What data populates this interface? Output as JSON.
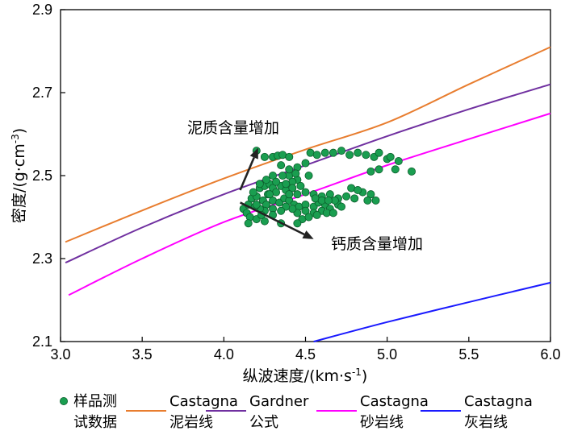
{
  "chart_data": {
    "type": "scatter",
    "xlabel_main": "纵波速度/(km·s",
    "xlabel_sup": "-1",
    "xlabel_end": ")",
    "ylabel_main": "密度/(g·cm",
    "ylabel_sup": "-3",
    "ylabel_end": ")",
    "xlim": [
      3.0,
      6.0
    ],
    "ylim": [
      2.1,
      2.9
    ],
    "xticks": [
      3.0,
      3.5,
      4.0,
      4.5,
      5.0,
      5.5,
      6.0
    ],
    "xtick_labels": [
      "3.0",
      "3.5",
      "4.0",
      "4.5",
      "5.0",
      "5.5",
      "6.0"
    ],
    "yticks": [
      2.1,
      2.3,
      2.5,
      2.7,
      2.9
    ],
    "ytick_labels": [
      "2.1",
      "2.3",
      "2.5",
      "2.7",
      "2.9"
    ],
    "lines": [
      {
        "name": "Castagna 泥岩线",
        "color": "#e87d2f",
        "x": [
          3.03,
          3.5,
          4.0,
          4.5,
          5.0,
          5.5,
          6.0
        ],
        "y": [
          2.34,
          2.416,
          2.493,
          2.563,
          2.628,
          2.72,
          2.81
        ]
      },
      {
        "name": "Gardner 公式",
        "color": "#7030a0",
        "x": [
          3.03,
          3.5,
          4.0,
          4.5,
          5.0,
          5.5,
          6.0
        ],
        "y": [
          2.29,
          2.375,
          2.455,
          2.525,
          2.595,
          2.66,
          2.72
        ]
      },
      {
        "name": "Castagna 砂岩线",
        "color": "#ff00ff",
        "x": [
          3.05,
          3.5,
          4.0,
          4.5,
          5.0,
          5.5,
          6.0
        ],
        "y": [
          2.212,
          2.3,
          2.388,
          2.455,
          2.525,
          2.588,
          2.65
        ]
      },
      {
        "name": "Castagna 灰岩线",
        "color": "#1a1aff",
        "x": [
          4.55,
          5.0,
          5.5,
          6.0
        ],
        "y": [
          2.1,
          2.147,
          2.195,
          2.242
        ]
      }
    ],
    "scatter": {
      "name": "样品测试数据",
      "color": "#1a9e50",
      "points": [
        [
          4.2,
          2.56
        ],
        [
          4.25,
          2.545
        ],
        [
          4.3,
          2.545
        ],
        [
          4.33,
          2.548
        ],
        [
          4.36,
          2.55
        ],
        [
          4.4,
          2.545
        ],
        [
          4.45,
          2.52
        ],
        [
          4.5,
          2.53
        ],
        [
          4.53,
          2.555
        ],
        [
          4.57,
          2.55
        ],
        [
          4.62,
          2.555
        ],
        [
          4.67,
          2.555
        ],
        [
          4.72,
          2.56
        ],
        [
          4.77,
          2.55
        ],
        [
          4.82,
          2.555
        ],
        [
          4.87,
          2.55
        ],
        [
          4.92,
          2.545
        ],
        [
          4.95,
          2.555
        ],
        [
          5.0,
          2.54
        ],
        [
          5.02,
          2.545
        ],
        [
          5.07,
          2.535
        ],
        [
          4.9,
          2.51
        ],
        [
          4.95,
          2.515
        ],
        [
          5.05,
          2.515
        ],
        [
          5.15,
          2.51
        ],
        [
          4.4,
          2.5
        ],
        [
          4.45,
          2.49
        ],
        [
          4.52,
          2.5
        ],
        [
          4.47,
          2.475
        ],
        [
          4.42,
          2.485
        ],
        [
          4.35,
          2.475
        ],
        [
          4.38,
          2.465
        ],
        [
          4.45,
          2.455
        ],
        [
          4.5,
          2.46
        ],
        [
          4.55,
          2.455
        ],
        [
          4.6,
          2.45
        ],
        [
          4.65,
          2.455
        ],
        [
          4.7,
          2.445
        ],
        [
          4.75,
          2.45
        ],
        [
          4.8,
          2.445
        ],
        [
          4.85,
          2.46
        ],
        [
          4.9,
          2.455
        ],
        [
          4.88,
          2.44
        ],
        [
          4.93,
          2.44
        ],
        [
          4.78,
          2.47
        ],
        [
          4.82,
          2.465
        ],
        [
          4.12,
          2.42
        ],
        [
          4.14,
          2.41
        ],
        [
          4.15,
          2.43
        ],
        [
          4.17,
          2.445
        ],
        [
          4.2,
          2.45
        ],
        [
          4.18,
          2.46
        ],
        [
          4.22,
          2.47
        ],
        [
          4.25,
          2.475
        ],
        [
          4.28,
          2.48
        ],
        [
          4.3,
          2.47
        ],
        [
          4.32,
          2.46
        ],
        [
          4.27,
          2.455
        ],
        [
          4.24,
          2.44
        ],
        [
          4.26,
          2.43
        ],
        [
          4.3,
          2.44
        ],
        [
          4.34,
          2.435
        ],
        [
          4.37,
          2.445
        ],
        [
          4.4,
          2.44
        ],
        [
          4.43,
          2.43
        ],
        [
          4.46,
          2.425
        ],
        [
          4.5,
          2.43
        ],
        [
          4.55,
          2.425
        ],
        [
          4.58,
          2.435
        ],
        [
          4.62,
          2.43
        ],
        [
          4.65,
          2.42
        ],
        [
          4.7,
          2.43
        ],
        [
          4.68,
          2.44
        ],
        [
          4.72,
          2.425
        ],
        [
          4.6,
          2.415
        ],
        [
          4.55,
          2.41
        ],
        [
          4.5,
          2.415
        ],
        [
          4.45,
          2.41
        ],
        [
          4.42,
          2.42
        ],
        [
          4.38,
          2.425
        ],
        [
          4.35,
          2.415
        ],
        [
          4.3,
          2.42
        ],
        [
          4.25,
          2.415
        ],
        [
          4.22,
          2.42
        ],
        [
          4.19,
          2.425
        ],
        [
          4.16,
          2.4
        ],
        [
          4.2,
          2.395
        ],
        [
          4.25,
          2.39
        ],
        [
          4.15,
          2.385
        ],
        [
          4.3,
          2.405
        ],
        [
          4.22,
          2.48
        ],
        [
          4.26,
          2.49
        ],
        [
          4.3,
          2.5
        ],
        [
          4.36,
          2.5
        ],
        [
          4.4,
          2.515
        ],
        [
          4.44,
          2.505
        ],
        [
          4.35,
          2.525
        ],
        [
          4.32,
          2.485
        ],
        [
          4.38,
          2.48
        ],
        [
          4.42,
          2.47
        ],
        [
          4.2,
          2.43
        ],
        [
          4.23,
          2.405
        ],
        [
          4.48,
          2.395
        ],
        [
          4.52,
          2.4
        ],
        [
          4.57,
          2.405
        ],
        [
          4.63,
          2.41
        ],
        [
          4.67,
          2.41
        ],
        [
          4.56,
          2.445
        ],
        [
          4.6,
          2.44
        ],
        [
          4.64,
          2.44
        ],
        [
          4.35,
          2.385
        ],
        [
          4.45,
          2.385
        ],
        [
          4.28,
          2.455
        ],
        [
          4.4,
          2.455
        ]
      ]
    },
    "annotations": [
      {
        "text": "泥质含量增加",
        "from": [
          4.1,
          2.465
        ],
        "to": [
          4.21,
          2.567
        ]
      },
      {
        "text": "钙质含量增加",
        "from": [
          4.1,
          2.435
        ],
        "to": [
          4.55,
          2.347
        ]
      }
    ]
  },
  "legend": {
    "items": [
      {
        "line1": "样品测",
        "line2": "试数据",
        "kind": "marker",
        "color": "#1a9e50"
      },
      {
        "line1": "Castagna",
        "line2": "泥岩线",
        "kind": "line",
        "color": "#e87d2f"
      },
      {
        "line1": "Gardner",
        "line2": "公式",
        "kind": "line",
        "color": "#7030a0"
      },
      {
        "line1": "Castagna",
        "line2": "砂岩线",
        "kind": "line",
        "color": "#ff00ff"
      },
      {
        "line1": "Castagna",
        "line2": "灰岩线",
        "kind": "line",
        "color": "#1a1aff"
      }
    ]
  }
}
